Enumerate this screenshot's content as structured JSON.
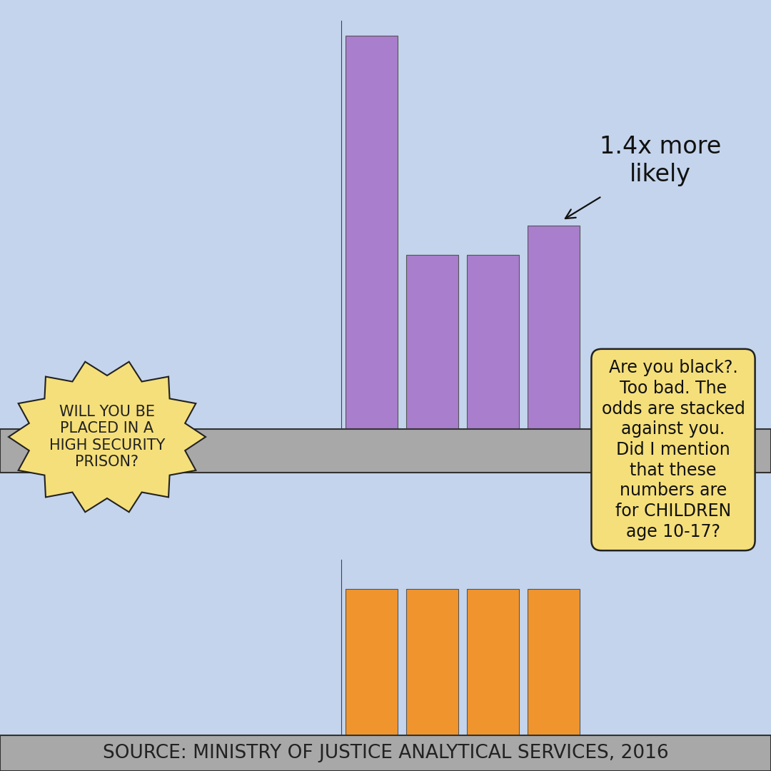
{
  "title": "WILL YOU BE\nPLACED IN A\nHIGH SECURITY\nPRISON?",
  "chart_data": [
    {
      "type": "bar",
      "categories": [
        null,
        null,
        null,
        null
      ],
      "values": [
        2.7,
        1.2,
        1.2,
        1.4
      ],
      "color": "#a97ecd",
      "ylim": [
        0,
        2.8
      ],
      "tick_labels": false,
      "annotation": "1.4x more\nlikely"
    },
    {
      "type": "bar",
      "categories": [
        null,
        null,
        null,
        null
      ],
      "values": [
        1,
        1,
        1,
        1
      ],
      "color": "#f0952e",
      "ylim": [
        0,
        1.2
      ],
      "tick_labels": false
    }
  ],
  "note": "Are you black?.\nToo bad. The\nodds are stacked\nagainst you.\nDid I mention\nthat these\nnumbers are\nfor CHILDREN\nage 10-17?",
  "source": "SOURCE: MINISTRY OF JUSTICE ANALYTICAL SERVICES, 2016"
}
